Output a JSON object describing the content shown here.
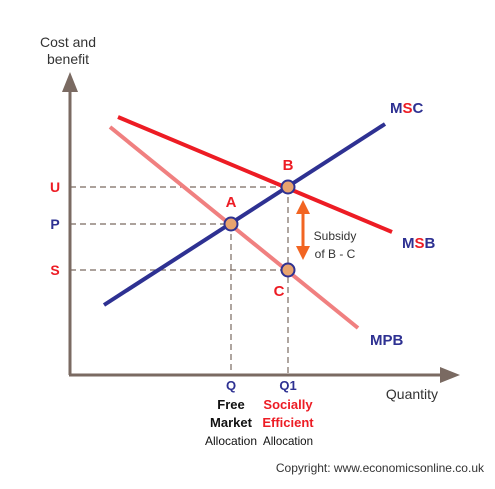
{
  "axes": {
    "y_label_line1": "Cost and",
    "y_label_line2": "benefit",
    "x_label": "Quantity"
  },
  "curves": {
    "msc": {
      "label_pre": "M",
      "label_accent": "S",
      "label_post": "C",
      "color": "#2e3192"
    },
    "msb": {
      "label_pre": "M",
      "label_accent": "S",
      "label_post": "B",
      "color": "#ed1c24"
    },
    "mpb": {
      "label": "MPB",
      "color": "#f08080"
    }
  },
  "points": {
    "a": "A",
    "b": "B",
    "c": "C"
  },
  "y_ticks": {
    "u": "U",
    "p": "P",
    "s": "S"
  },
  "x_ticks": {
    "q": "Q",
    "q1": "Q1"
  },
  "subsidy": {
    "line1": "Subsidy",
    "line2": "of B - C"
  },
  "allocations": {
    "free_line1": "Free",
    "free_line2": "Market",
    "alloc_left": "Allocation",
    "social_line1": "Socially",
    "social_line2": "Efficient",
    "alloc_right": "Allocation"
  },
  "copyright": "Copyright: www.economicsonline.co.uk",
  "colors": {
    "axis": "#7a6a62",
    "label_blue": "#2e3192",
    "label_red": "#ed1c24",
    "dot_fill": "#e8a36e",
    "dot_stroke": "#2e3192",
    "arrow": "#f26522"
  }
}
